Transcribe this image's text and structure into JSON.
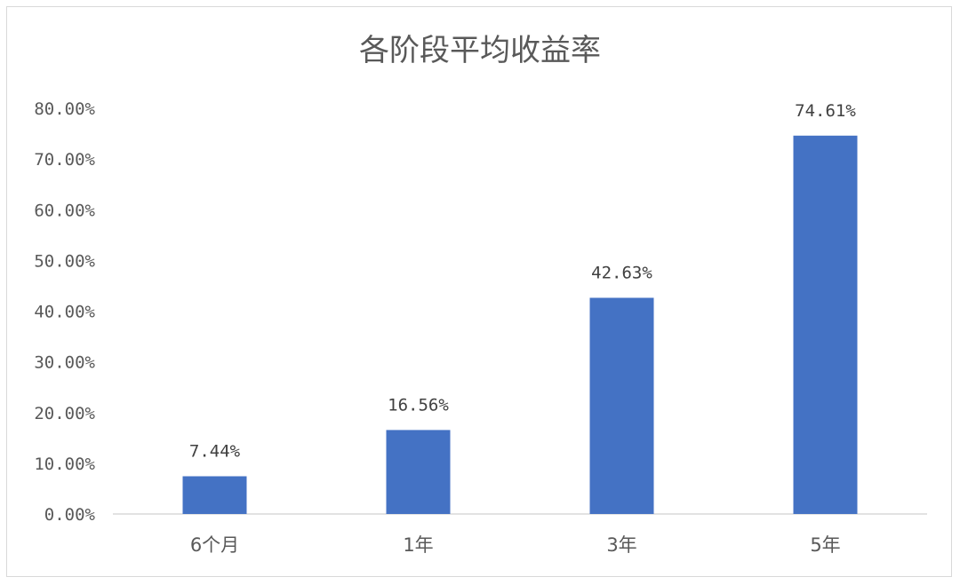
{
  "chart_data": {
    "type": "bar",
    "title": "各阶段平均收益率",
    "categories": [
      "6个月",
      "1年",
      "3年",
      "5年"
    ],
    "values": [
      7.44,
      16.56,
      42.63,
      74.61
    ],
    "data_labels": [
      "7.44%",
      "16.56%",
      "42.63%",
      "74.61%"
    ],
    "y_ticks": [
      "0.00%",
      "10.00%",
      "20.00%",
      "30.00%",
      "40.00%",
      "50.00%",
      "60.00%",
      "70.00%",
      "80.00%"
    ],
    "ylim": [
      0,
      80
    ],
    "xlabel": "",
    "ylabel": "",
    "grid": false,
    "legend": "none",
    "bar_color": "#4472c4",
    "axis_color": "#d9d9d9"
  }
}
